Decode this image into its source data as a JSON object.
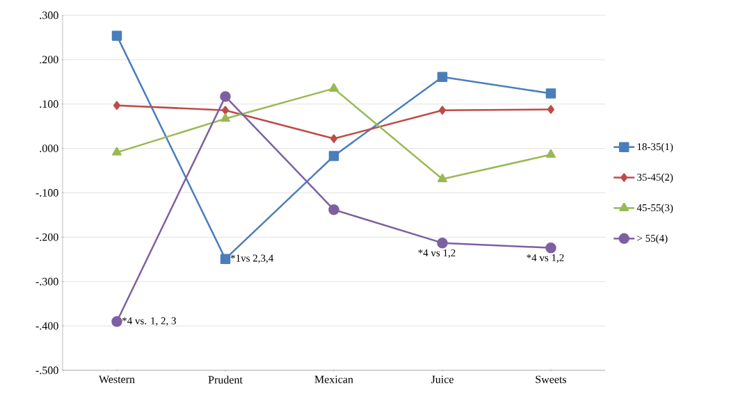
{
  "chart_data": {
    "type": "line",
    "categories": [
      "Western",
      "Prudent",
      "Mexican",
      "Juice",
      "Sweets"
    ],
    "series": [
      {
        "name": "18-35(1)",
        "color": "#4a7ebb",
        "marker": "square",
        "values": [
          0.254,
          -0.249,
          -0.017,
          0.161,
          0.124
        ]
      },
      {
        "name": "35-45(2)",
        "color": "#be4b48",
        "marker": "diamond",
        "values": [
          0.097,
          0.086,
          0.022,
          0.086,
          0.088
        ]
      },
      {
        "name": "45-55(3)",
        "color": "#98b954",
        "marker": "triangle",
        "values": [
          -0.009,
          0.067,
          0.135,
          -0.069,
          -0.014
        ]
      },
      {
        "name": "> 55(4)",
        "color": "#7d60a0",
        "marker": "circle",
        "values": [
          -0.39,
          0.117,
          -0.138,
          -0.213,
          -0.224
        ]
      }
    ],
    "ylim": [
      -0.5,
      0.3
    ],
    "yticks": [
      {
        "value": -0.5,
        "label": "-.500"
      },
      {
        "value": -0.4,
        "label": "-.400"
      },
      {
        "value": -0.3,
        "label": "-.300"
      },
      {
        "value": -0.2,
        "label": "-.200"
      },
      {
        "value": -0.1,
        "label": "-.100"
      },
      {
        "value": 0,
        "label": ".000"
      },
      {
        "value": 0.1,
        "label": ".100"
      },
      {
        "value": 0.2,
        "label": ".200"
      },
      {
        "value": 0.3,
        "label": ".300"
      }
    ],
    "grid": "y",
    "legend": "right",
    "line_style": "solid",
    "annotations": [
      {
        "text": "*4 vs. 1, 2, 3",
        "x": "Western",
        "y": -0.39
      },
      {
        "text": "*1vs  2,3,4",
        "x": "Prudent",
        "y": -0.249
      },
      {
        "text": "*4 vs 1,2",
        "x": "Juice",
        "y": -0.213
      },
      {
        "text": "*4 vs 1,2",
        "x": "Sweets",
        "y": -0.224
      }
    ]
  }
}
